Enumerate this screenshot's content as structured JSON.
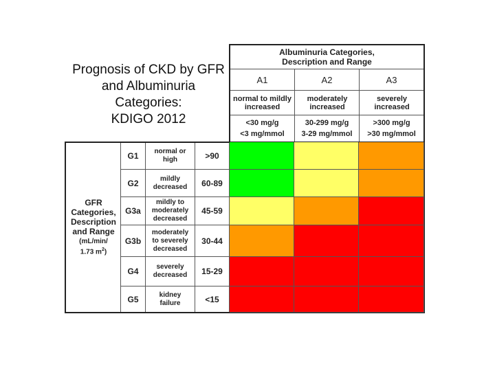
{
  "title": {
    "line1": "Prognosis of CKD by GFR",
    "line2": "and Albuminuria",
    "line3": "Categories:",
    "line4": "KDIGO 2012"
  },
  "albuminuria": {
    "header_line1": "Albuminuria Categories,",
    "header_line2": "Description and Range",
    "categories": [
      {
        "code": "A1",
        "description": "normal to mildly increased",
        "range1": "<30 mg/g",
        "range2": "<3 mg/mmol"
      },
      {
        "code": "A2",
        "description": "moderately increased",
        "range1": "30-299 mg/g",
        "range2": "3-29 mg/mmol"
      },
      {
        "code": "A3",
        "description": "severely increased",
        "range1": ">300 mg/g",
        "range2": ">30 mg/mmol"
      }
    ]
  },
  "gfr": {
    "header_line1": "GFR",
    "header_line2": "Categories,",
    "header_line3": "Description",
    "header_line4": "and Range",
    "units_line1": "(mL/min/",
    "units_line2": "1.73 m",
    "units_sup": "2",
    "units_close": ")",
    "categories": [
      {
        "code": "G1",
        "desc1": "normal or",
        "desc2": "high",
        "desc3": "",
        "range": ">90"
      },
      {
        "code": "G2",
        "desc1": "mildly",
        "desc2": "decreased",
        "desc3": "",
        "range": "60-89"
      },
      {
        "code": "G3a",
        "desc1": "mildly to",
        "desc2": "moderately",
        "desc3": "decreased",
        "range": "45-59"
      },
      {
        "code": "G3b",
        "desc1": "moderately",
        "desc2": "to severely",
        "desc3": "decreased",
        "range": "30-44"
      },
      {
        "code": "G4",
        "desc1": "severely",
        "desc2": "decreased",
        "desc3": "",
        "range": "15-29"
      },
      {
        "code": "G5",
        "desc1": "kidney",
        "desc2": "failure",
        "desc3": "",
        "range": "<15"
      }
    ]
  },
  "colors": {
    "green": "#00ff00",
    "yellow": "#ffff66",
    "orange": "#ff9900",
    "red": "#ff0000"
  },
  "risk_grid": [
    [
      "green",
      "yellow",
      "orange"
    ],
    [
      "green",
      "yellow",
      "orange"
    ],
    [
      "yellow",
      "orange",
      "red"
    ],
    [
      "orange",
      "red",
      "red"
    ],
    [
      "red",
      "red",
      "red"
    ],
    [
      "red",
      "red",
      "red"
    ]
  ]
}
